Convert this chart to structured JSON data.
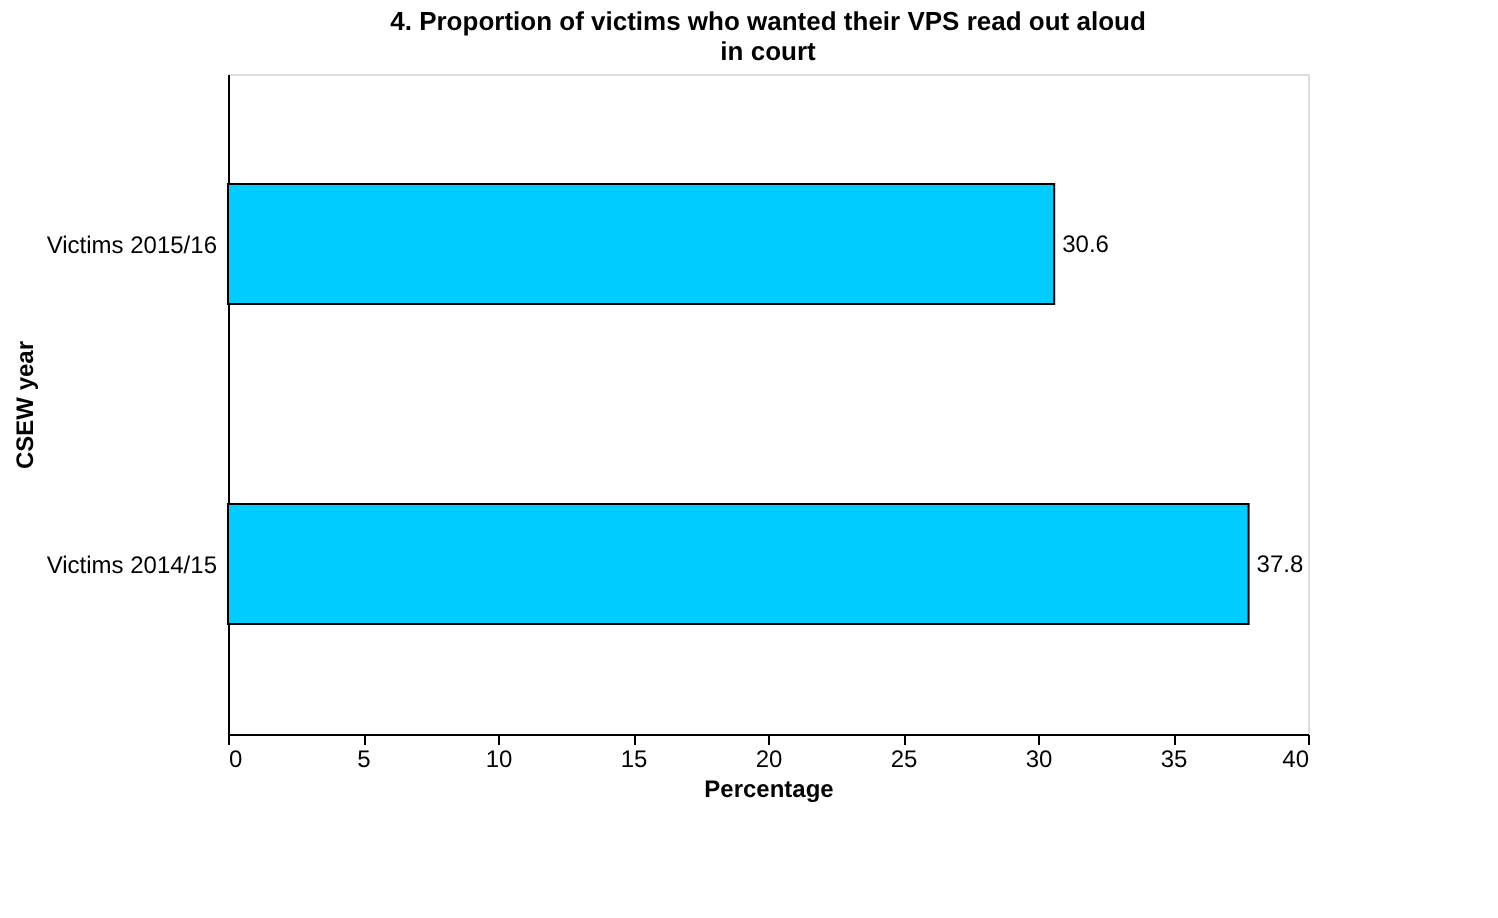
{
  "chart_data": {
    "type": "bar",
    "orientation": "horizontal",
    "title": "4. Proportion of victims who wanted their VPS read out aloud in court",
    "xlabel": "Percentage",
    "ylabel": "CSEW year",
    "categories": [
      "Victims 2015/16",
      "Victims 2014/15"
    ],
    "values": [
      30.6,
      37.8
    ],
    "color": "#00ccff",
    "xlim": [
      0,
      40
    ],
    "xticks": [
      0,
      5,
      10,
      15,
      20,
      25,
      30,
      35,
      40
    ],
    "grid": false,
    "data_labels": true
  }
}
